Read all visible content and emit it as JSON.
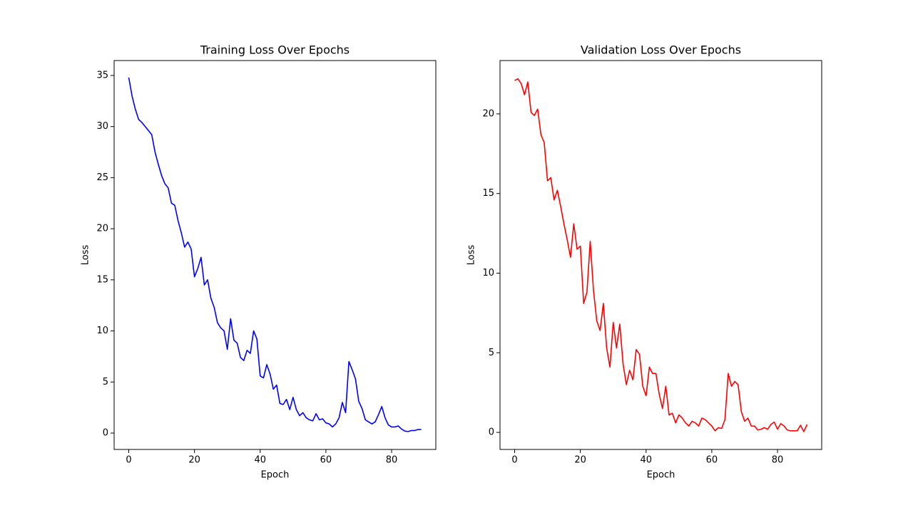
{
  "chart_data": [
    {
      "type": "line",
      "title": "Training Loss Over Epochs",
      "xlabel": "Epoch",
      "ylabel": "Loss",
      "x": [
        0,
        1,
        2,
        3,
        4,
        5,
        6,
        7,
        8,
        9,
        10,
        11,
        12,
        13,
        14,
        15,
        16,
        17,
        18,
        19,
        20,
        21,
        22,
        23,
        24,
        25,
        26,
        27,
        28,
        29,
        30,
        31,
        32,
        33,
        34,
        35,
        36,
        37,
        38,
        39,
        40,
        41,
        42,
        43,
        44,
        45,
        46,
        47,
        48,
        49,
        50,
        51,
        52,
        53,
        54,
        55,
        56,
        57,
        58,
        59,
        60,
        61,
        62,
        63,
        64,
        65,
        66,
        67,
        68,
        69,
        70,
        71,
        72,
        73,
        74,
        75,
        76,
        77,
        78,
        79,
        80,
        81,
        82,
        83,
        84,
        85,
        86,
        87,
        88,
        89
      ],
      "series": [
        {
          "color": "#0000ff",
          "values": [
            34.8,
            33.0,
            31.7,
            30.7,
            30.4,
            30.0,
            29.6,
            29.2,
            27.5,
            26.3,
            25.2,
            24.4,
            24.0,
            22.5,
            22.3,
            20.8,
            19.6,
            18.2,
            18.7,
            18.0,
            15.3,
            16.1,
            17.2,
            14.5,
            15.0,
            13.2,
            12.3,
            10.8,
            10.3,
            10.0,
            8.2,
            11.2,
            9.1,
            8.8,
            7.4,
            7.1,
            8.1,
            7.8,
            10.0,
            9.2,
            5.6,
            5.4,
            6.7,
            5.8,
            4.3,
            4.7,
            2.9,
            2.8,
            3.3,
            2.3,
            3.5,
            2.3,
            1.7,
            2.0,
            1.5,
            1.3,
            1.2,
            1.9,
            1.3,
            1.4,
            1.0,
            0.9,
            0.6,
            0.9,
            1.5,
            3.0,
            2.0,
            7.0,
            6.2,
            5.3,
            3.1,
            2.4,
            1.3,
            1.1,
            0.9,
            1.1,
            1.8,
            2.6,
            1.5,
            0.8,
            0.6,
            0.6,
            0.7,
            0.4,
            0.2,
            0.15,
            0.25,
            0.25,
            0.35,
            0.35
          ]
        }
      ],
      "xlim": [
        -4.45,
        93.45
      ],
      "xticks": [
        0,
        20,
        40,
        60,
        80
      ],
      "ylim": [
        -1.6,
        36.46
      ],
      "yticks": [
        0,
        5,
        10,
        15,
        20,
        25,
        30,
        35
      ]
    },
    {
      "type": "line",
      "title": "Validation Loss Over Epochs",
      "xlabel": "Epoch",
      "ylabel": "Loss",
      "x": [
        0,
        1,
        2,
        3,
        4,
        5,
        6,
        7,
        8,
        9,
        10,
        11,
        12,
        13,
        14,
        15,
        16,
        17,
        18,
        19,
        20,
        21,
        22,
        23,
        24,
        25,
        26,
        27,
        28,
        29,
        30,
        31,
        32,
        33,
        34,
        35,
        36,
        37,
        38,
        39,
        40,
        41,
        42,
        43,
        44,
        45,
        46,
        47,
        48,
        49,
        50,
        51,
        52,
        53,
        54,
        55,
        56,
        57,
        58,
        59,
        60,
        61,
        62,
        63,
        64,
        65,
        66,
        67,
        68,
        69,
        70,
        71,
        72,
        73,
        74,
        75,
        76,
        77,
        78,
        79,
        80,
        81,
        82,
        83,
        84,
        85,
        86,
        87,
        88,
        89
      ],
      "series": [
        {
          "color": "#ff0000",
          "values": [
            22.1,
            22.2,
            21.9,
            21.2,
            22.0,
            20.1,
            19.9,
            20.3,
            18.7,
            18.2,
            15.8,
            16.0,
            14.6,
            15.2,
            14.2,
            13.1,
            12.1,
            11.0,
            13.1,
            11.5,
            11.7,
            8.1,
            8.8,
            12.0,
            8.9,
            7.0,
            6.4,
            8.1,
            5.3,
            4.1,
            6.9,
            5.3,
            6.8,
            4.3,
            3.0,
            3.9,
            3.3,
            5.2,
            4.9,
            2.9,
            2.3,
            4.1,
            3.7,
            3.7,
            2.4,
            1.5,
            2.9,
            1.1,
            1.2,
            0.6,
            1.1,
            0.9,
            0.6,
            0.4,
            0.7,
            0.6,
            0.4,
            0.9,
            0.8,
            0.6,
            0.4,
            0.1,
            0.3,
            0.25,
            0.8,
            3.7,
            2.9,
            3.2,
            3.0,
            1.3,
            0.7,
            0.9,
            0.4,
            0.4,
            0.15,
            0.2,
            0.3,
            0.2,
            0.5,
            0.65,
            0.2,
            0.55,
            0.4,
            0.15,
            0.1,
            0.1,
            0.1,
            0.45,
            0.05,
            0.5
          ]
        }
      ],
      "xlim": [
        -4.45,
        93.45
      ],
      "xticks": [
        0,
        20,
        40,
        60,
        80
      ],
      "ylim": [
        -1.07,
        23.35
      ],
      "yticks": [
        0,
        5,
        10,
        15,
        20
      ]
    }
  ]
}
